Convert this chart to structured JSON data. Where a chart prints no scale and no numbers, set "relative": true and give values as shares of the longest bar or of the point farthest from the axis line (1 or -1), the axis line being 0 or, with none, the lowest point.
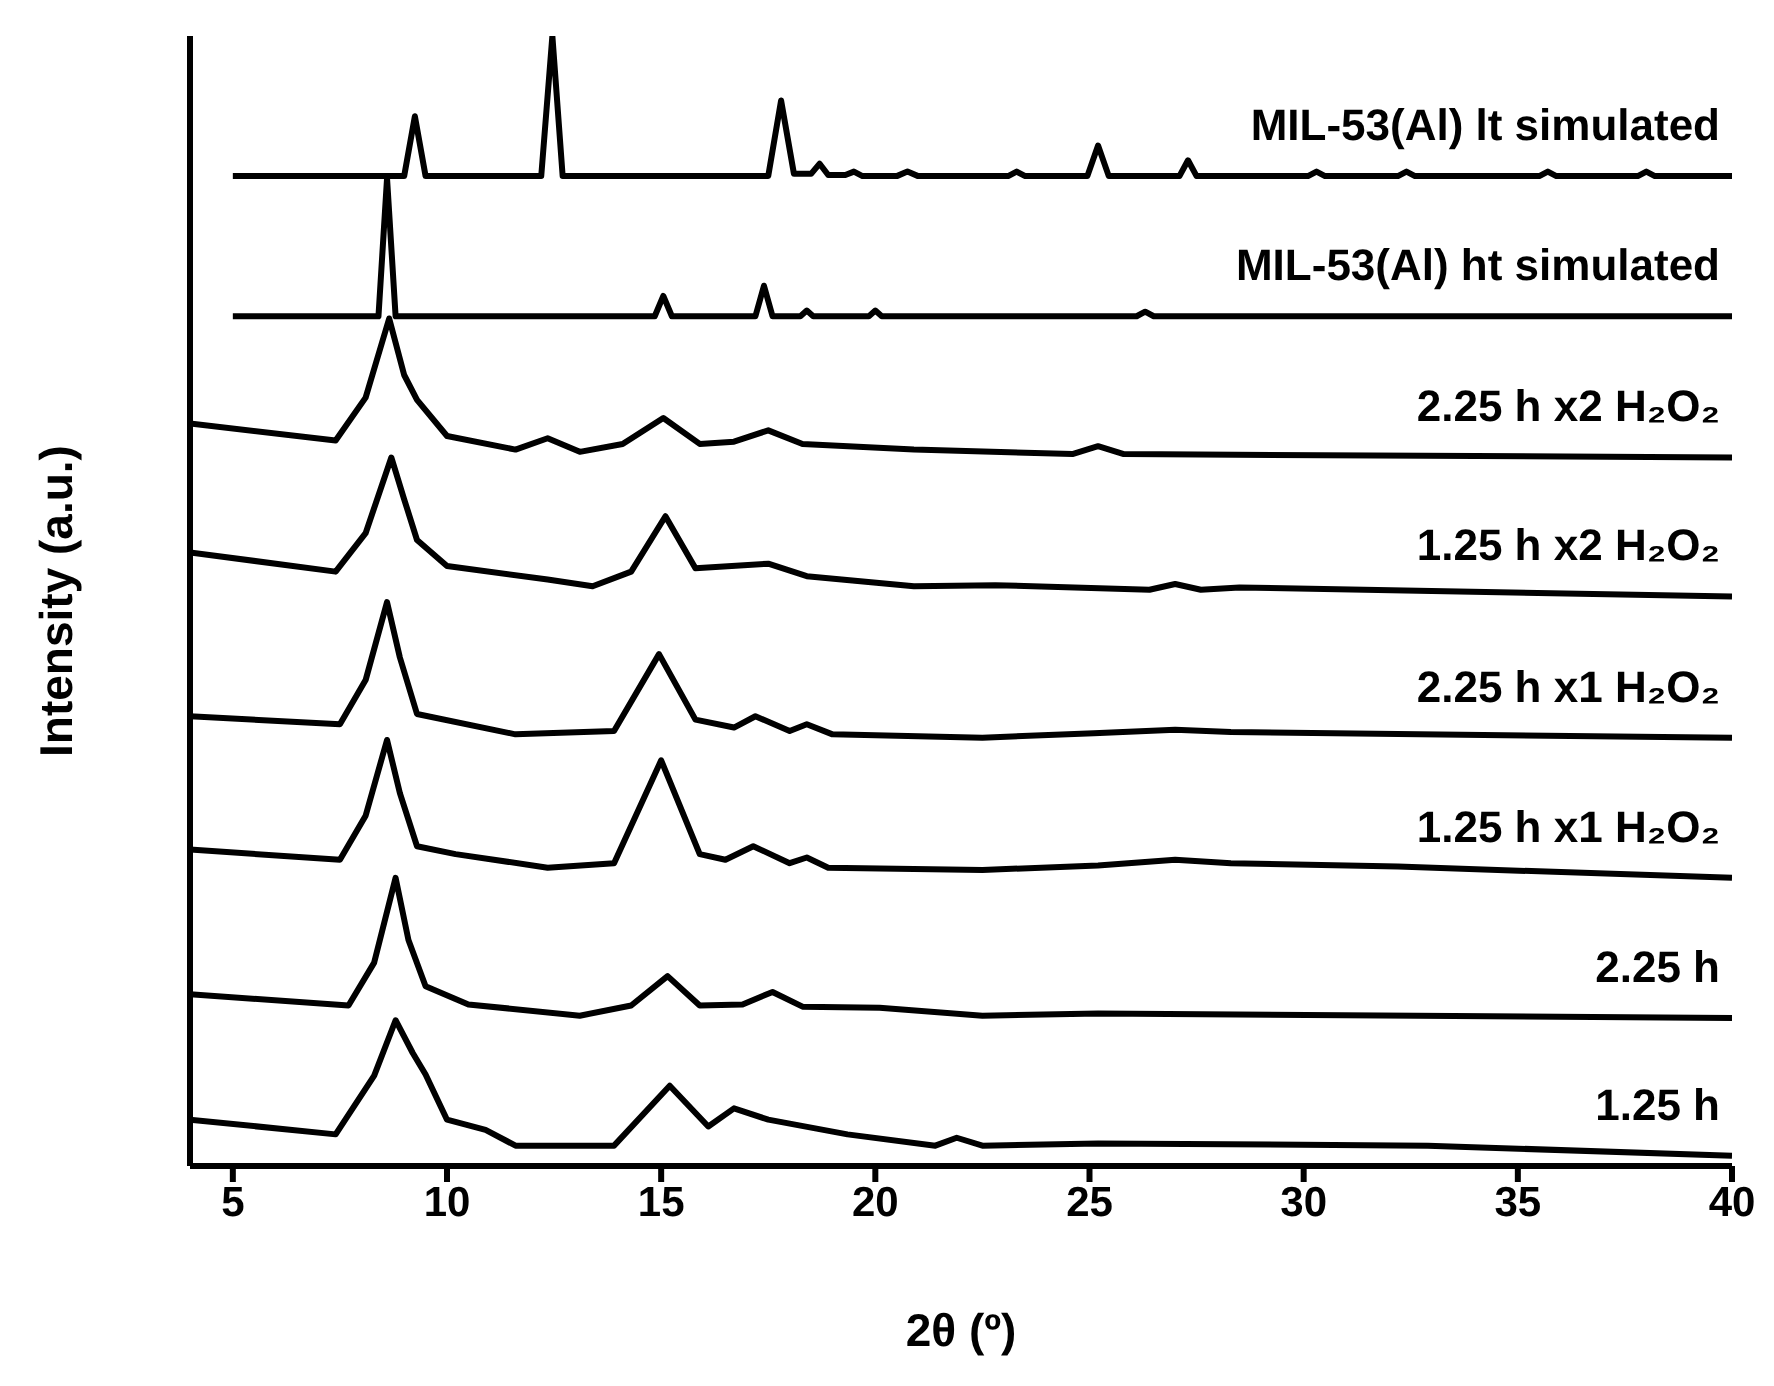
{
  "chart_data": {
    "type": "line",
    "xlabel": "2θ (º)",
    "ylabel": "Intensity (a.u.)",
    "relative": true,
    "xlim": [
      4,
      40
    ],
    "xticks": [
      5,
      10,
      15,
      20,
      25,
      30,
      35,
      40
    ],
    "grid": false,
    "legend": false,
    "marker": "none",
    "line_style": "solid",
    "series": [
      {
        "name": "MIL-53(Al) lt simulated",
        "color": "#000000",
        "x": [
          5,
          9.0,
          9.25,
          9.5,
          12.2,
          12.46,
          12.7,
          17.5,
          17.8,
          18.1,
          18.5,
          18.7,
          18.9,
          19.3,
          19.5,
          19.7,
          20.5,
          20.75,
          21,
          23.1,
          23.3,
          23.5,
          24.95,
          25.2,
          25.45,
          27.1,
          27.3,
          27.5,
          30.1,
          30.3,
          30.5,
          32.2,
          32.4,
          32.6,
          35.5,
          35.7,
          35.9,
          37.8,
          38,
          38.2,
          40
        ],
        "values": [
          0.876,
          0.876,
          0.929,
          0.876,
          0.876,
          1,
          0.876,
          0.876,
          0.943,
          0.878,
          0.878,
          0.887,
          0.877,
          0.877,
          0.88,
          0.876,
          0.876,
          0.88,
          0.876,
          0.876,
          0.88,
          0.876,
          0.876,
          0.903,
          0.876,
          0.876,
          0.89,
          0.876,
          0.876,
          0.88,
          0.876,
          0.876,
          0.88,
          0.876,
          0.876,
          0.88,
          0.876,
          0.876,
          0.88,
          0.876,
          0.876
        ]
      },
      {
        "name": "MIL-53(Al) ht simulated",
        "color": "#000000",
        "x": [
          5,
          8.4,
          8.6,
          8.8,
          14.85,
          15.05,
          15.25,
          17.2,
          17.4,
          17.6,
          18.25,
          18.4,
          18.55,
          19.85,
          20,
          20.15,
          26.1,
          26.3,
          26.5,
          40
        ],
        "values": [
          0.752,
          0.752,
          0.874,
          0.752,
          0.752,
          0.77,
          0.752,
          0.752,
          0.779,
          0.752,
          0.752,
          0.757,
          0.752,
          0.752,
          0.757,
          0.752,
          0.752,
          0.756,
          0.752,
          0.752
        ]
      },
      {
        "name": "2.25 h x2 H₂O₂",
        "color": "#000000",
        "x": [
          4,
          7.4,
          8.1,
          8.65,
          9.0,
          9.3,
          10.0,
          11.6,
          12.35,
          13.1,
          14.1,
          15.05,
          15.9,
          16.7,
          17.5,
          18.3,
          20.9,
          24.6,
          25.2,
          25.8,
          40
        ],
        "values": [
          0.657,
          0.642,
          0.68,
          0.75,
          0.7,
          0.678,
          0.646,
          0.634,
          0.644,
          0.632,
          0.639,
          0.662,
          0.639,
          0.641,
          0.651,
          0.639,
          0.634,
          0.63,
          0.637,
          0.63,
          0.627
        ]
      },
      {
        "name": "1.25 h x2 H₂O₂",
        "color": "#000000",
        "x": [
          4,
          7.4,
          8.1,
          8.7,
          9.0,
          9.3,
          10.0,
          12.35,
          13.4,
          14.3,
          15.1,
          15.8,
          17.5,
          18.4,
          20.9,
          22.8,
          26.4,
          27.0,
          27.6,
          28.5,
          40
        ],
        "values": [
          0.543,
          0.526,
          0.56,
          0.627,
          0.59,
          0.554,
          0.531,
          0.519,
          0.513,
          0.526,
          0.575,
          0.529,
          0.533,
          0.522,
          0.513,
          0.514,
          0.51,
          0.515,
          0.51,
          0.512,
          0.504
        ]
      },
      {
        "name": "2.25 h x1 H₂O₂",
        "color": "#000000",
        "x": [
          4,
          7.5,
          8.1,
          8.6,
          8.9,
          9.3,
          11.6,
          13.9,
          14.95,
          15.8,
          16.7,
          17.2,
          18.0,
          18.4,
          19.0,
          22.5,
          25.1,
          27.0,
          28.3,
          40
        ],
        "values": [
          0.398,
          0.391,
          0.43,
          0.499,
          0.45,
          0.4,
          0.382,
          0.385,
          0.453,
          0.395,
          0.388,
          0.398,
          0.385,
          0.391,
          0.382,
          0.379,
          0.383,
          0.386,
          0.384,
          0.379
        ]
      },
      {
        "name": "1.25 h x1 H₂O₂",
        "color": "#000000",
        "x": [
          4,
          7.5,
          8.1,
          8.6,
          8.9,
          9.3,
          10.2,
          12.35,
          13.9,
          15.0,
          15.9,
          16.5,
          17.15,
          18.0,
          18.4,
          18.9,
          22.5,
          25.2,
          27.0,
          28.3,
          32.2,
          40
        ],
        "values": [
          0.28,
          0.271,
          0.31,
          0.377,
          0.33,
          0.283,
          0.276,
          0.264,
          0.268,
          0.359,
          0.276,
          0.271,
          0.283,
          0.268,
          0.273,
          0.264,
          0.262,
          0.266,
          0.271,
          0.268,
          0.265,
          0.255
        ]
      },
      {
        "name": "2.25 h",
        "color": "#000000",
        "x": [
          4,
          7.7,
          8.3,
          8.8,
          9.1,
          9.5,
          10.5,
          13.1,
          14.3,
          15.15,
          15.9,
          16.9,
          17.6,
          18.3,
          20.1,
          22.5,
          25.2,
          40
        ],
        "values": [
          0.152,
          0.142,
          0.18,
          0.255,
          0.2,
          0.159,
          0.143,
          0.133,
          0.142,
          0.168,
          0.142,
          0.143,
          0.154,
          0.141,
          0.14,
          0.133,
          0.135,
          0.131
        ]
      },
      {
        "name": "1.25 h",
        "color": "#000000",
        "x": [
          4,
          7.4,
          8.3,
          8.8,
          9.2,
          9.5,
          10.0,
          10.9,
          11.6,
          13.9,
          15.2,
          16.1,
          16.7,
          17.5,
          19.35,
          21.4,
          21.9,
          22.5,
          25.2,
          32.9,
          40
        ],
        "values": [
          0.041,
          0.028,
          0.08,
          0.129,
          0.1,
          0.081,
          0.041,
          0.032,
          0.018,
          0.018,
          0.071,
          0.035,
          0.051,
          0.041,
          0.028,
          0.018,
          0.025,
          0.018,
          0.02,
          0.018,
          0.009
        ]
      }
    ]
  }
}
